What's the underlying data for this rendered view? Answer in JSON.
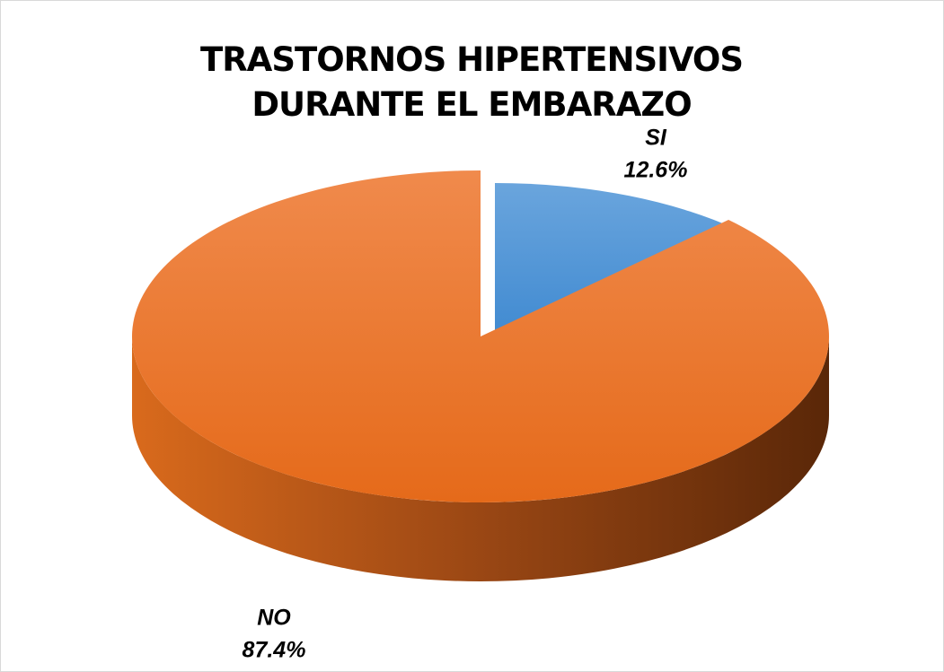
{
  "chart_data": {
    "type": "pie",
    "title": "TRASTORNOS HIPERTENSIVOS DURANTE EL EMBARAZO",
    "categories": [
      "SI",
      "NO"
    ],
    "values": [
      12.6,
      87.4
    ],
    "value_labels": [
      "12.6%",
      "87.4%"
    ],
    "colors": [
      "#5b9bd5",
      "#ed7d31"
    ]
  }
}
